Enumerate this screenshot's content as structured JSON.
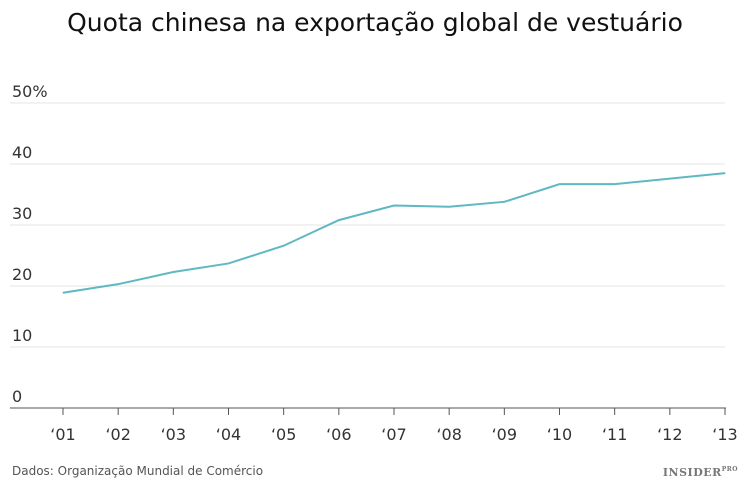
{
  "chart_data": {
    "type": "line",
    "title": "Quota chinesa na exportação global de vestuário",
    "categories": [
      "‘01",
      "‘02",
      "‘03",
      "‘04",
      "‘05",
      "‘06",
      "‘07",
      "‘08",
      "‘09",
      "‘10",
      "‘11",
      "‘12",
      "‘13"
    ],
    "series": [
      {
        "values": [
          18.9,
          20.3,
          22.3,
          23.7,
          26.6,
          30.8,
          33.2,
          33.0,
          33.8,
          36.7,
          36.7,
          37.6,
          38.5
        ]
      }
    ],
    "yticks": [
      "0",
      "10",
      "20",
      "30",
      "40",
      "50%"
    ],
    "ylim": [
      0,
      50
    ],
    "grid": true,
    "line_color": "#5fb8c2",
    "source": "Dados: Organização Mundial de Comércio"
  },
  "logo": {
    "text": "INSIDER",
    "suffix": "PRO"
  }
}
